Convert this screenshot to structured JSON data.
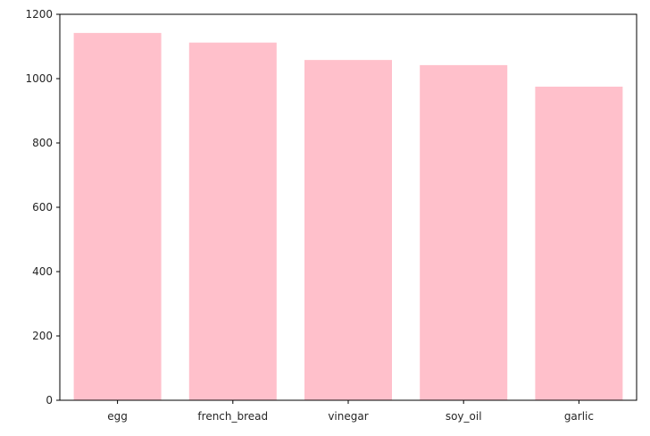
{
  "chart_data": {
    "type": "bar",
    "categories": [
      "egg",
      "french_bread",
      "vinegar",
      "soy_oil",
      "garlic"
    ],
    "values": [
      1142,
      1112,
      1058,
      1042,
      975
    ],
    "title": "",
    "xlabel": "",
    "ylabel": "",
    "ylim": [
      0,
      1200
    ],
    "yticks": [
      0,
      200,
      400,
      600,
      800,
      1000,
      1200
    ],
    "bar_color": "#ffc0cb",
    "grid": false,
    "legend": "none"
  }
}
